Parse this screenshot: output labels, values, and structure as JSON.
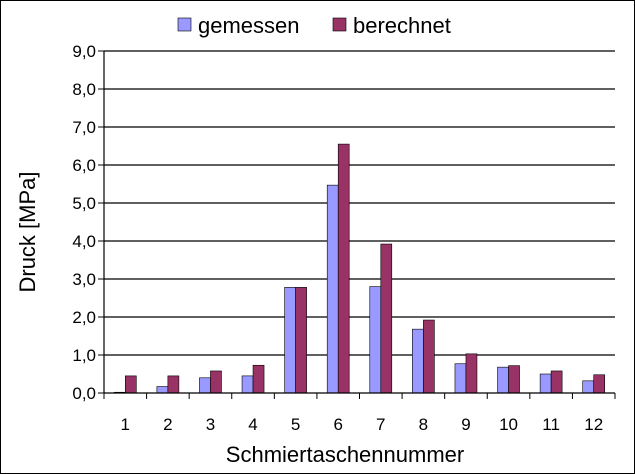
{
  "chart_data": {
    "type": "bar",
    "xlabel": "Schmiertaschennummer",
    "ylabel": "Druck [MPa]",
    "categories": [
      "1",
      "2",
      "3",
      "4",
      "5",
      "6",
      "7",
      "8",
      "9",
      "10",
      "11",
      "12"
    ],
    "ylim": [
      0,
      9
    ],
    "yticks": [
      "0,0",
      "1,0",
      "2,0",
      "3,0",
      "4,0",
      "5,0",
      "6,0",
      "7,0",
      "8,0",
      "9,0"
    ],
    "grid": "horizontal",
    "legend_position": "top",
    "series": [
      {
        "name": "gemessen",
        "color": "#9999FF",
        "values": [
          0.02,
          0.17,
          0.4,
          0.45,
          2.78,
          5.47,
          2.8,
          1.68,
          0.77,
          0.68,
          0.5,
          0.32
        ]
      },
      {
        "name": "berechnet",
        "color": "#993366",
        "values": [
          0.45,
          0.45,
          0.58,
          0.73,
          2.78,
          6.55,
          3.92,
          1.92,
          1.03,
          0.72,
          0.58,
          0.48
        ]
      }
    ]
  }
}
